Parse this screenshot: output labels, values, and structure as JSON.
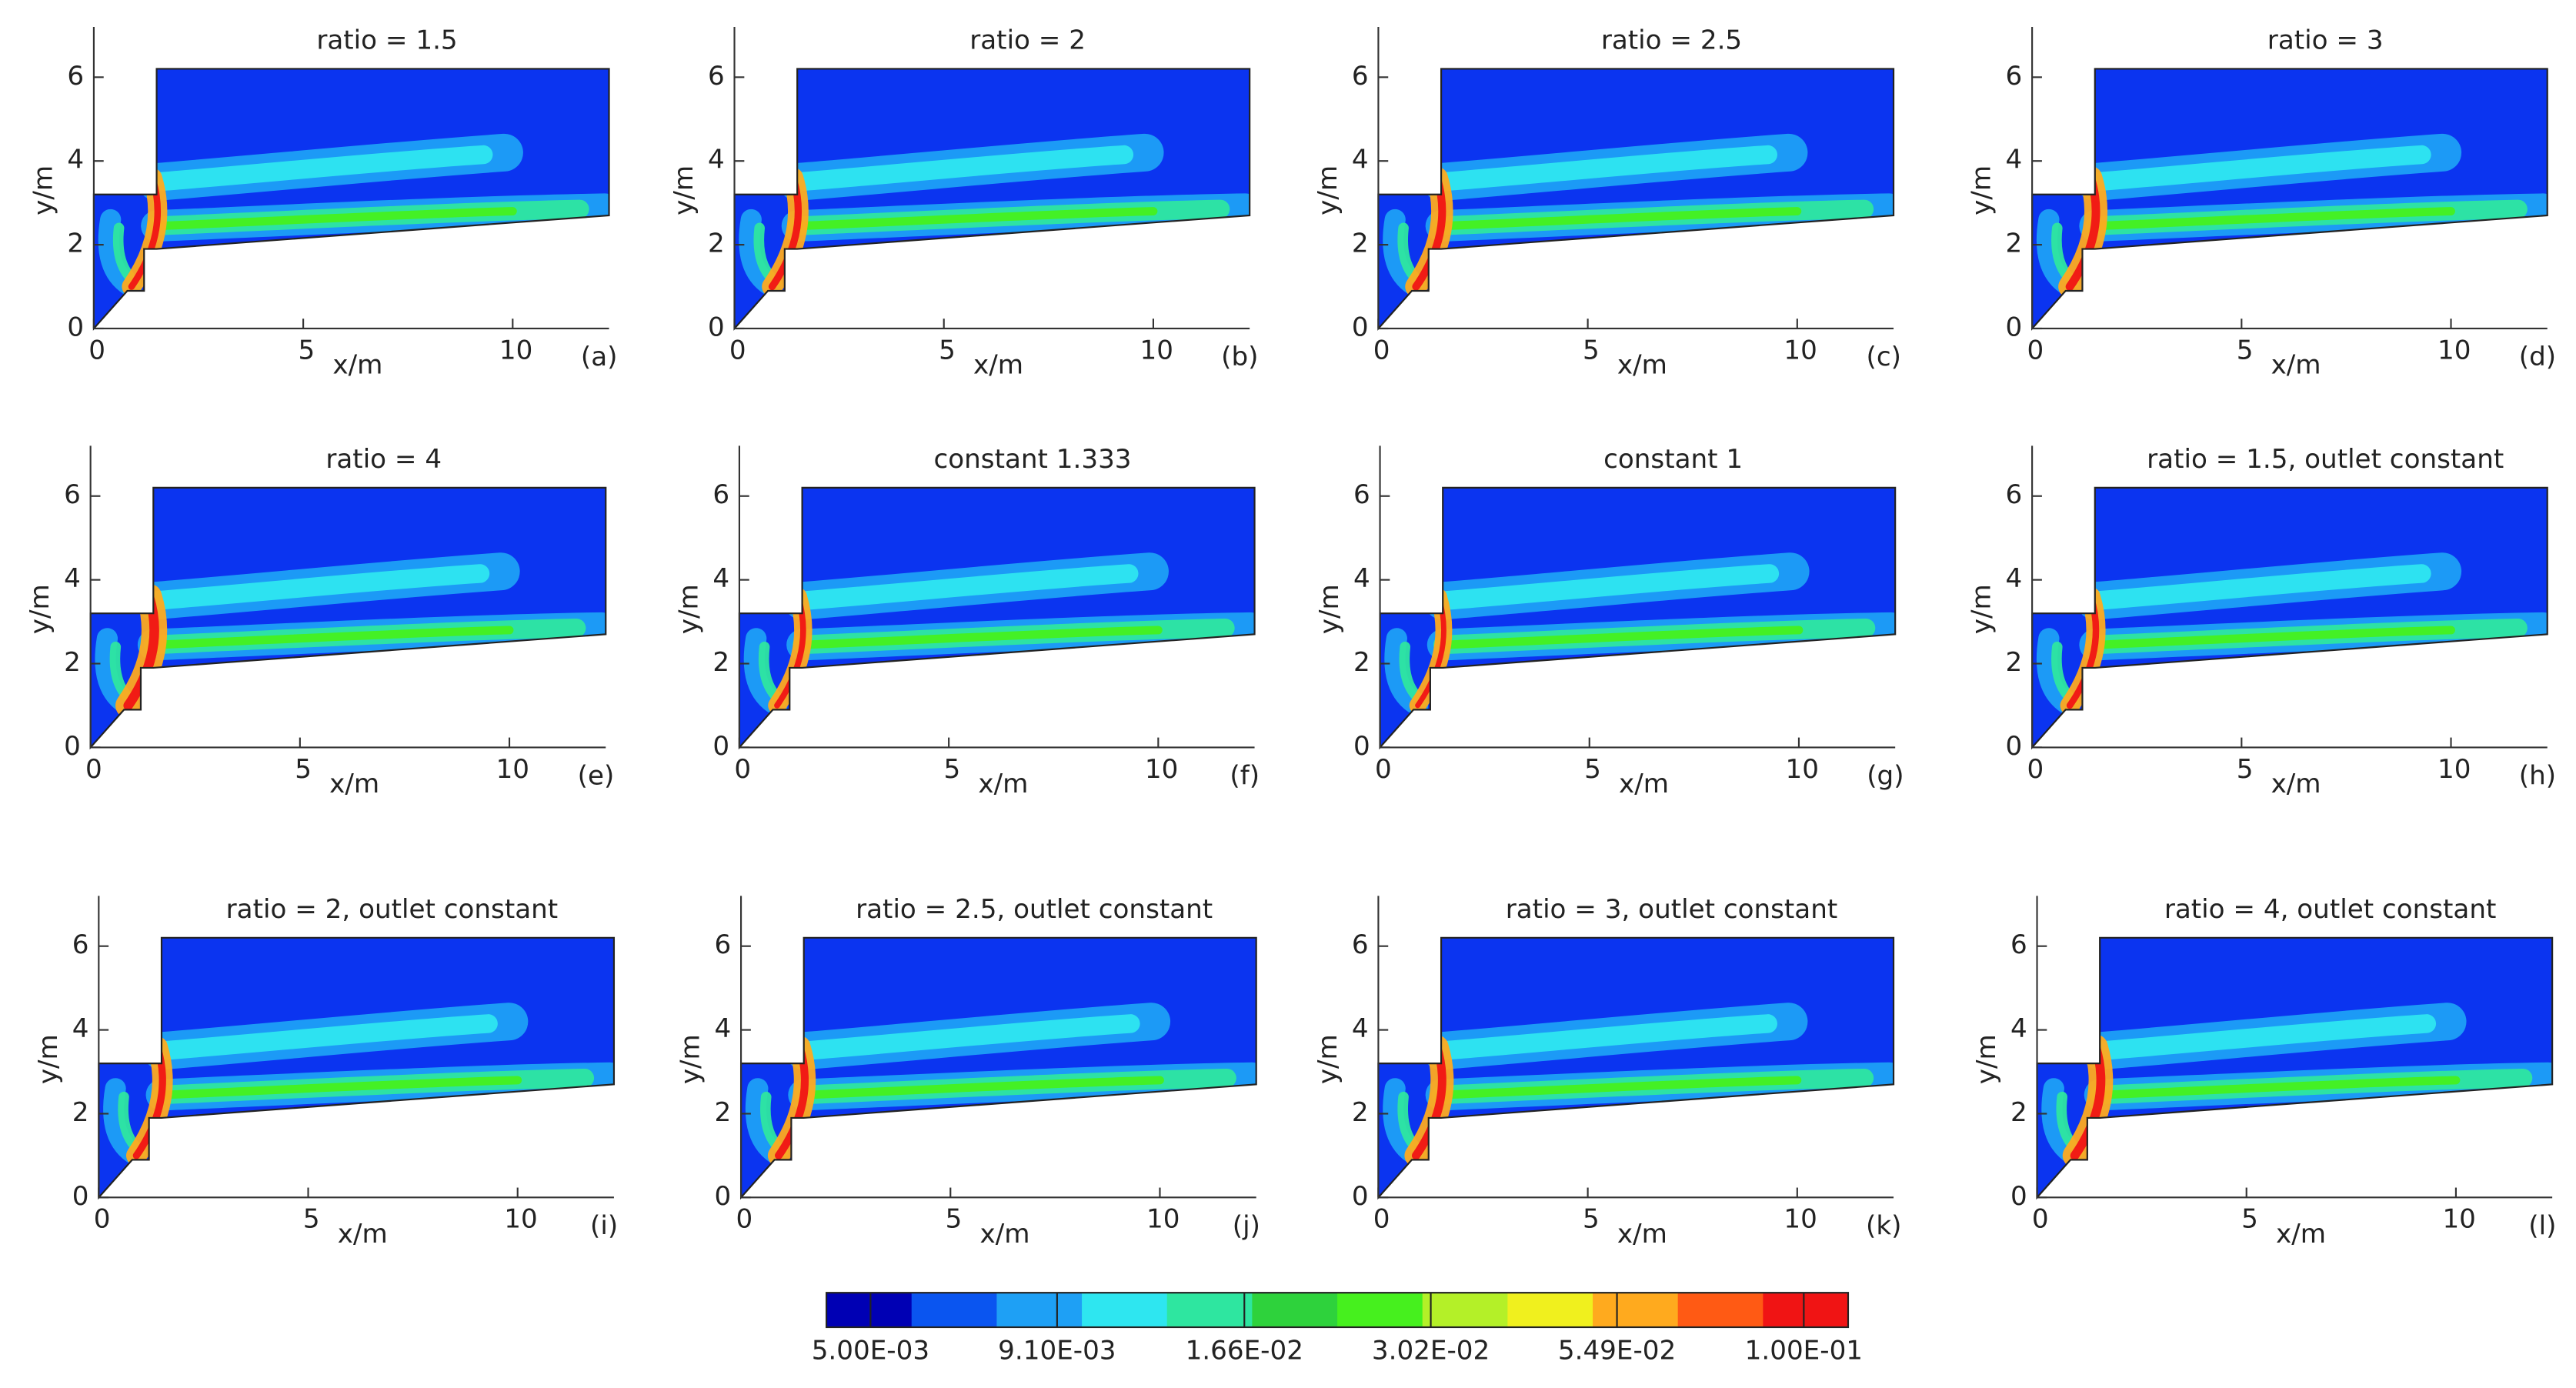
{
  "chart_data": [
    {
      "type": "contour",
      "title": "ratio = 1.5",
      "panel_label": "(a)",
      "xlabel": "x/m",
      "ylabel": "y/m",
      "xlim": [
        0,
        12.3
      ],
      "ylim": [
        0,
        7.2
      ],
      "xticks": [
        0,
        5,
        10
      ],
      "yticks": [
        0,
        2,
        4,
        6
      ]
    },
    {
      "type": "contour",
      "title": "ratio = 2",
      "panel_label": "(b)",
      "xlabel": "x/m",
      "ylabel": "y/m",
      "xlim": [
        0,
        12.3
      ],
      "ylim": [
        0,
        7.2
      ],
      "xticks": [
        0,
        5,
        10
      ],
      "yticks": [
        0,
        2,
        4,
        6
      ]
    },
    {
      "type": "contour",
      "title": "ratio = 2.5",
      "panel_label": "(c)",
      "xlabel": "x/m",
      "ylabel": "y/m",
      "xlim": [
        0,
        12.3
      ],
      "ylim": [
        0,
        7.2
      ],
      "xticks": [
        0,
        5,
        10
      ],
      "yticks": [
        0,
        2,
        4,
        6
      ]
    },
    {
      "type": "contour",
      "title": "ratio = 3",
      "panel_label": "(d)",
      "xlabel": "x/m",
      "ylabel": "y/m",
      "xlim": [
        0,
        12.3
      ],
      "ylim": [
        0,
        7.2
      ],
      "xticks": [
        0,
        5,
        10
      ],
      "yticks": [
        0,
        2,
        4,
        6
      ]
    },
    {
      "type": "contour",
      "title": "ratio = 4",
      "panel_label": "(e)",
      "xlabel": "x/m",
      "ylabel": "y/m",
      "xlim": [
        0,
        12.3
      ],
      "ylim": [
        0,
        7.2
      ],
      "xticks": [
        0,
        5,
        10
      ],
      "yticks": [
        0,
        2,
        4,
        6
      ]
    },
    {
      "type": "contour",
      "title": "constant 1.333",
      "panel_label": "(f)",
      "xlabel": "x/m",
      "ylabel": "y/m",
      "xlim": [
        0,
        12.3
      ],
      "ylim": [
        0,
        7.2
      ],
      "xticks": [
        0,
        5,
        10
      ],
      "yticks": [
        0,
        2,
        4,
        6
      ]
    },
    {
      "type": "contour",
      "title": "constant 1",
      "panel_label": "(g)",
      "xlabel": "x/m",
      "ylabel": "y/m",
      "xlim": [
        0,
        12.3
      ],
      "ylim": [
        0,
        7.2
      ],
      "xticks": [
        0,
        5,
        10
      ],
      "yticks": [
        0,
        2,
        4,
        6
      ]
    },
    {
      "type": "contour",
      "title": "ratio = 1.5, outlet constant",
      "panel_label": "(h)",
      "xlabel": "x/m",
      "ylabel": "y/m",
      "xlim": [
        0,
        12.3
      ],
      "ylim": [
        0,
        7.2
      ],
      "xticks": [
        0,
        5,
        10
      ],
      "yticks": [
        0,
        2,
        4,
        6
      ]
    },
    {
      "type": "contour",
      "title": "ratio = 2, outlet constant",
      "panel_label": "(i)",
      "xlabel": "x/m",
      "ylabel": "y/m",
      "xlim": [
        0,
        12.3
      ],
      "ylim": [
        0,
        7.2
      ],
      "xticks": [
        0,
        5,
        10
      ],
      "yticks": [
        0,
        2,
        4,
        6
      ]
    },
    {
      "type": "contour",
      "title": "ratio = 2.5, outlet constant",
      "panel_label": "(j)",
      "xlabel": "x/m",
      "ylabel": "y/m",
      "xlim": [
        0,
        12.3
      ],
      "ylim": [
        0,
        7.2
      ],
      "xticks": [
        0,
        5,
        10
      ],
      "yticks": [
        0,
        2,
        4,
        6
      ]
    },
    {
      "type": "contour",
      "title": "ratio = 3, outlet constant",
      "panel_label": "(k)",
      "xlabel": "x/m",
      "ylabel": "y/m",
      "xlim": [
        0,
        12.3
      ],
      "ylim": [
        0,
        7.2
      ],
      "xticks": [
        0,
        5,
        10
      ],
      "yticks": [
        0,
        2,
        4,
        6
      ]
    },
    {
      "type": "contour",
      "title": "ratio = 4, outlet constant",
      "panel_label": "(l)",
      "xlabel": "x/m",
      "ylabel": "y/m",
      "xlim": [
        0,
        12.3
      ],
      "ylim": [
        0,
        7.2
      ],
      "xticks": [
        0,
        5,
        10
      ],
      "yticks": [
        0,
        2,
        4,
        6
      ]
    }
  ],
  "colorbar": {
    "log": true,
    "range": [
      0.00434,
      0.1153
    ],
    "colors": [
      "#0000b4",
      "#0a55f0",
      "#1ea0f5",
      "#2ee6f0",
      "#2ee6a0",
      "#2ed23c",
      "#46f01e",
      "#b4f028",
      "#f0f01e",
      "#ffaa1e",
      "#ff5a14",
      "#f01414"
    ],
    "ticks": [
      {
        "value": 0.005,
        "label": "5.00E-03"
      },
      {
        "value": 0.0091,
        "label": "9.10E-03"
      },
      {
        "value": 0.0166,
        "label": "1.66E-02"
      },
      {
        "value": 0.0302,
        "label": "3.02E-02"
      },
      {
        "value": 0.0549,
        "label": "5.49E-02"
      },
      {
        "value": 0.1,
        "label": "1.00E-01"
      }
    ]
  }
}
